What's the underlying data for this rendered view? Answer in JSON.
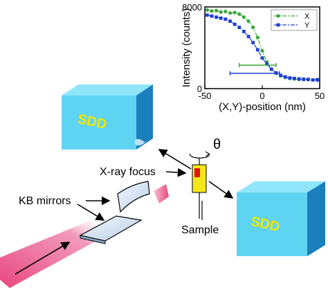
{
  "diagram": {
    "detector_label": "SDD",
    "xray_focus_label": "X-ray focus",
    "kb_mirrors_label": "KB mirrors",
    "sample_label": "Sample",
    "rotation_symbol": "θ",
    "colors": {
      "detector_front": "#5fd4f2",
      "detector_side": "#1b7fbe",
      "detector_top": "#8fe6fb",
      "detector_text": "#f2e600",
      "beam": "#e8477e",
      "sample_body": "#f5e61a",
      "sample_spot": "#e0151b",
      "mirror": "#d9e8f5"
    }
  },
  "chart_data": {
    "type": "scatter",
    "xlabel": "(X,Y)-position (nm)",
    "ylabel": "Intensity (counts)",
    "xlim": [
      -50,
      50
    ],
    "ylim": [
      0,
      8000
    ],
    "x_ticks": [
      "-50",
      "0",
      "50"
    ],
    "y_ticks": [
      "0",
      "8000"
    ],
    "legend_position": "top-right",
    "series": [
      {
        "name": "X",
        "color": "#3aa63a",
        "marker": "circle",
        "line_style": "dash-dot",
        "x": [
          -48,
          -44,
          -40,
          -36,
          -32,
          -28,
          -24,
          -20,
          -16,
          -12,
          -8,
          -4,
          0,
          4,
          8,
          12,
          16,
          20,
          24,
          28,
          32,
          36,
          40,
          44,
          48
        ],
        "y": [
          7700,
          7600,
          7650,
          7500,
          7550,
          7400,
          7450,
          7300,
          7000,
          6600,
          6000,
          5000,
          3700,
          2600,
          1900,
          1500,
          1250,
          1100,
          1000,
          950,
          900,
          950,
          900,
          850,
          900
        ]
      },
      {
        "name": "Y",
        "color": "#1f3fd6",
        "marker": "square",
        "line_style": "dash-dot",
        "x": [
          -48,
          -44,
          -40,
          -36,
          -32,
          -28,
          -24,
          -20,
          -16,
          -12,
          -8,
          -4,
          0,
          4,
          8,
          12,
          16,
          20,
          24,
          28,
          32,
          36,
          40,
          44,
          48
        ],
        "y": [
          7200,
          7100,
          7000,
          6900,
          6800,
          6600,
          6300,
          6000,
          5600,
          5100,
          4500,
          3800,
          3000,
          2400,
          1900,
          1550,
          1300,
          1150,
          1050,
          1000,
          950,
          900,
          900,
          850,
          850
        ]
      }
    ],
    "resolution_bars": [
      {
        "series": "X",
        "x_start": -20,
        "x_end": 12,
        "y": 2300
      },
      {
        "series": "Y",
        "x_start": -28,
        "x_end": 15,
        "y": 1500
      }
    ]
  }
}
